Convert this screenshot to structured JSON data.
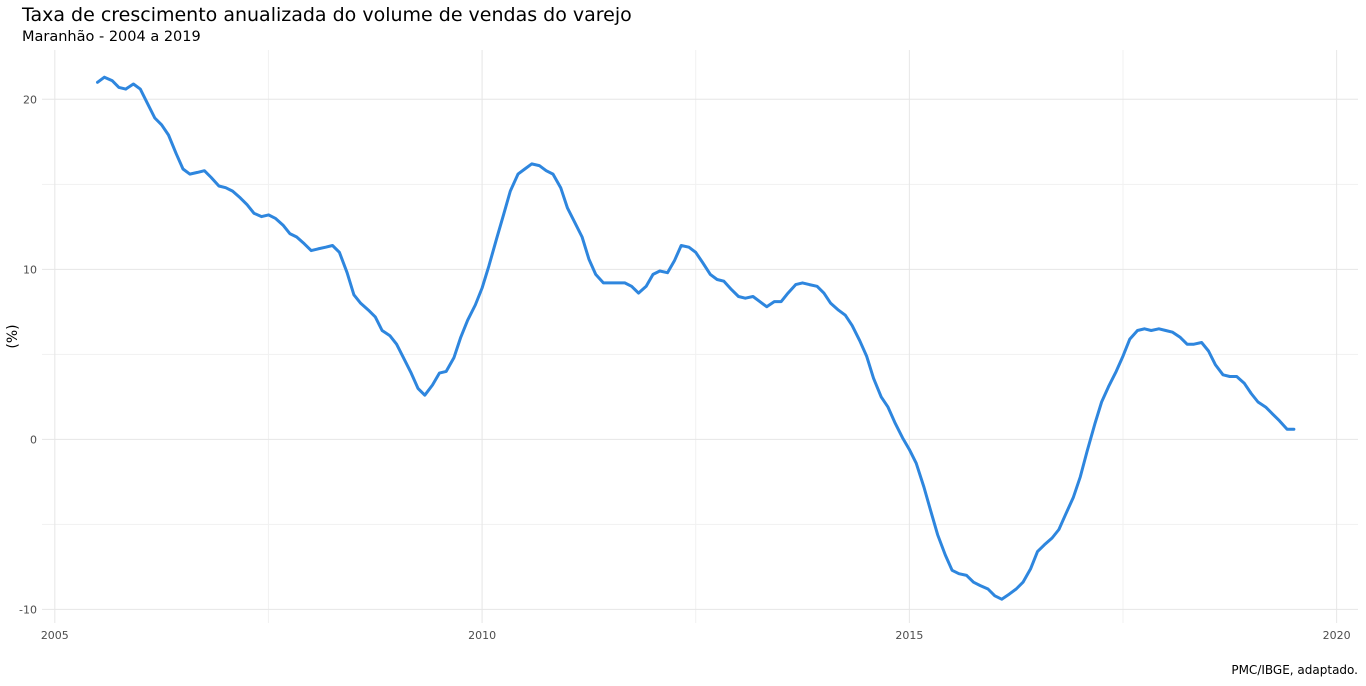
{
  "chart_data": {
    "type": "line",
    "title": "Taxa de crescimento anualizada do volume de vendas do varejo",
    "subtitle": "Maranhão - 2004 a 2019",
    "xlabel": "",
    "ylabel": "(%)",
    "caption": "PMC/IBGE, adaptado.",
    "xlim": [
      2004.85,
      2020.25
    ],
    "ylim": [
      -10.8,
      22.9
    ],
    "x_ticks": [
      2005,
      2010,
      2015,
      2020
    ],
    "x_tick_labels": [
      "2005",
      "2010",
      "2015",
      "2020"
    ],
    "y_ticks": [
      -10,
      0,
      10,
      20
    ],
    "y_tick_labels": [
      "-10",
      "0",
      "10",
      "20"
    ],
    "grid": true,
    "legend": "none",
    "line_color": "#2e86de",
    "series": [
      {
        "x": [
          2005.5,
          2005.58,
          2005.67,
          2005.75,
          2005.83,
          2005.92,
          2006.0,
          2006.08,
          2006.17,
          2006.25,
          2006.33,
          2006.42,
          2006.5,
          2006.58,
          2006.67,
          2006.75,
          2006.83,
          2006.92,
          2007.0,
          2007.08,
          2007.17,
          2007.25,
          2007.33,
          2007.42,
          2007.5,
          2007.58,
          2007.67,
          2007.75,
          2007.83,
          2007.92,
          2008.0,
          2008.08,
          2008.17,
          2008.25,
          2008.33,
          2008.42,
          2008.5,
          2008.58,
          2008.67,
          2008.75,
          2008.83,
          2008.92,
          2009.0,
          2009.08,
          2009.17,
          2009.25,
          2009.33,
          2009.42,
          2009.5,
          2009.58,
          2009.67,
          2009.75,
          2009.83,
          2009.92,
          2010.0,
          2010.08,
          2010.17,
          2010.25,
          2010.33,
          2010.42,
          2010.5,
          2010.58,
          2010.67,
          2010.75,
          2010.83,
          2010.92,
          2011.0,
          2011.08,
          2011.17,
          2011.25,
          2011.33,
          2011.42,
          2011.5,
          2011.58,
          2011.67,
          2011.75,
          2011.83,
          2011.92,
          2012.0,
          2012.08,
          2012.17,
          2012.25,
          2012.33,
          2012.42,
          2012.5,
          2012.58,
          2012.67,
          2012.75,
          2012.83,
          2012.92,
          2013.0,
          2013.08,
          2013.17,
          2013.25,
          2013.33,
          2013.42,
          2013.5,
          2013.58,
          2013.67,
          2013.75,
          2013.83,
          2013.92,
          2014.0,
          2014.08,
          2014.17,
          2014.25,
          2014.33,
          2014.42,
          2014.5,
          2014.58,
          2014.67,
          2014.75,
          2014.83,
          2014.92,
          2015.0,
          2015.08,
          2015.17,
          2015.25,
          2015.33,
          2015.42,
          2015.5,
          2015.58,
          2015.67,
          2015.75,
          2015.83,
          2015.92,
          2016.0,
          2016.08,
          2016.17,
          2016.25,
          2016.33,
          2016.42,
          2016.5,
          2016.58,
          2016.67,
          2016.75,
          2016.83,
          2016.92,
          2017.0,
          2017.08,
          2017.17,
          2017.25,
          2017.33,
          2017.42,
          2017.5,
          2017.58,
          2017.67,
          2017.75,
          2017.83,
          2017.92,
          2018.0,
          2018.08,
          2018.17,
          2018.25,
          2018.33,
          2018.42,
          2018.5,
          2018.58,
          2018.67,
          2018.75,
          2018.83,
          2018.92,
          2019.0,
          2019.08,
          2019.17,
          2019.25,
          2019.33,
          2019.42,
          2019.5
        ],
        "values": [
          21.0,
          21.3,
          21.1,
          20.7,
          20.6,
          20.9,
          20.6,
          19.8,
          18.9,
          18.5,
          17.9,
          16.8,
          15.9,
          15.6,
          15.7,
          15.8,
          15.4,
          14.9,
          14.8,
          14.6,
          14.2,
          13.8,
          13.3,
          13.1,
          13.2,
          13.0,
          12.6,
          12.1,
          11.9,
          11.5,
          11.1,
          11.2,
          11.3,
          11.4,
          11.0,
          9.8,
          8.5,
          8.0,
          7.6,
          7.2,
          6.4,
          6.1,
          5.6,
          4.8,
          3.9,
          3.0,
          2.6,
          3.2,
          3.9,
          4.0,
          4.8,
          6.0,
          7.0,
          7.9,
          8.9,
          10.2,
          11.8,
          13.2,
          14.6,
          15.6,
          15.9,
          16.2,
          16.1,
          15.8,
          15.6,
          14.8,
          13.6,
          12.8,
          11.9,
          10.6,
          9.7,
          9.2,
          9.2,
          9.2,
          9.2,
          9.0,
          8.6,
          9.0,
          9.7,
          9.9,
          9.8,
          10.5,
          11.4,
          11.3,
          11.0,
          10.4,
          9.7,
          9.4,
          9.3,
          8.8,
          8.4,
          8.3,
          8.4,
          8.1,
          7.8,
          8.1,
          8.1,
          8.6,
          9.1,
          9.2,
          9.1,
          9.0,
          8.6,
          8.0,
          7.6,
          7.3,
          6.7,
          5.8,
          4.9,
          3.6,
          2.5,
          1.9,
          1.0,
          0.1,
          -0.6,
          -1.4,
          -2.8,
          -4.2,
          -5.6,
          -6.8,
          -7.7,
          -7.9,
          -8.0,
          -8.4,
          -8.6,
          -8.8,
          -9.2,
          -9.4,
          -9.1,
          -8.8,
          -8.4,
          -7.6,
          -6.6,
          -6.2,
          -5.8,
          -5.3,
          -4.4,
          -3.4,
          -2.2,
          -0.7,
          0.9,
          2.2,
          3.1,
          4.0,
          4.9,
          5.9,
          6.4,
          6.5,
          6.4,
          6.5,
          6.4,
          6.3,
          6.0,
          5.6,
          5.6,
          5.7,
          5.2,
          4.4,
          3.8,
          3.7,
          3.7,
          3.3,
          2.7,
          2.2,
          1.9,
          1.5,
          1.1,
          0.6,
          0.6
        ]
      }
    ]
  }
}
